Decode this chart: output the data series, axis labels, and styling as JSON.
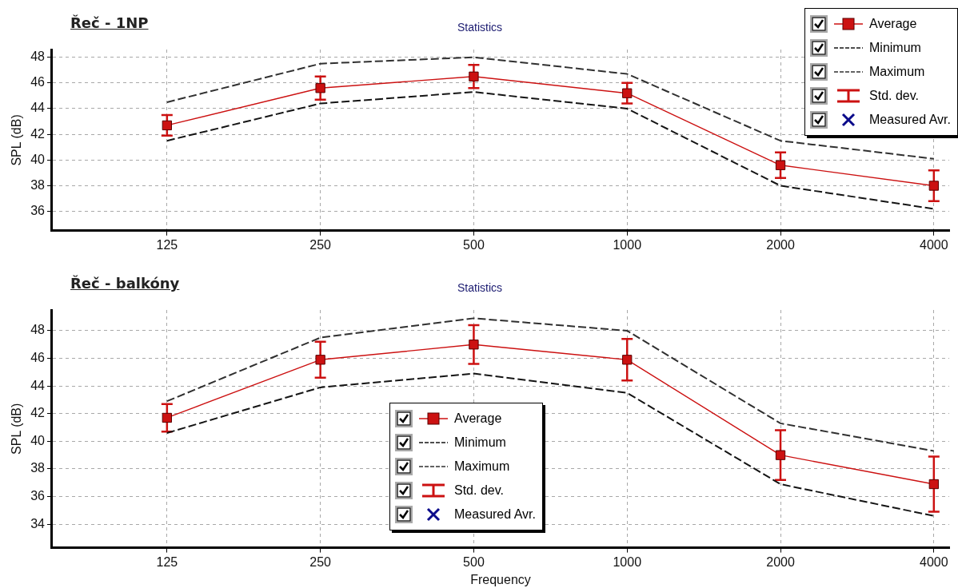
{
  "chart_data": [
    {
      "type": "line",
      "title": "Řeč - 1NP",
      "subtitle": "Statistics",
      "ylabel": "SPL (dB)",
      "categories": [
        "125",
        "250",
        "500",
        "1000",
        "2000",
        "4000"
      ],
      "ylim": [
        34.5,
        48.6
      ],
      "yticks": [
        36,
        38,
        40,
        42,
        44,
        46,
        48
      ],
      "grid": true,
      "legend": "top right",
      "annotations": [
        "Std. dev."
      ],
      "series": [
        {
          "name": "Average",
          "color": "#cc1111",
          "marker": "square",
          "line_style": "solid",
          "values": [
            42.7,
            45.6,
            46.5,
            45.2,
            39.6,
            38.0
          ],
          "errors": [
            0.8,
            0.9,
            0.9,
            0.8,
            1.0,
            1.2
          ]
        },
        {
          "name": "Minimum",
          "color": "#141414",
          "line_style": "dashed",
          "values": [
            41.5,
            44.4,
            45.3,
            44.0,
            38.0,
            36.2
          ]
        },
        {
          "name": "Maximum",
          "color": "#303030",
          "line_style": "dashed",
          "values": [
            44.5,
            47.5,
            48.0,
            46.7,
            41.5,
            40.1
          ]
        },
        {
          "name": "Measured Avr.",
          "color": "#0a0a8a",
          "marker": "cross",
          "values": [
            null,
            null,
            null,
            null,
            null,
            null
          ]
        }
      ]
    },
    {
      "type": "line",
      "title": "Řeč - balkóny",
      "subtitle": "Statistics",
      "xlabel": "Frequency",
      "ylabel": "SPL (dB)",
      "categories": [
        "125",
        "250",
        "500",
        "1000",
        "2000",
        "4000"
      ],
      "ylim": [
        32.3,
        49.5
      ],
      "yticks": [
        34,
        36,
        38,
        40,
        42,
        44,
        46,
        48
      ],
      "grid": true,
      "legend": "bottom",
      "annotations": [
        "Std. dev."
      ],
      "series": [
        {
          "name": "Average",
          "color": "#cc1111",
          "marker": "square",
          "line_style": "solid",
          "values": [
            41.7,
            45.9,
            47.0,
            45.9,
            39.0,
            36.9
          ],
          "errors": [
            1.0,
            1.3,
            1.4,
            1.5,
            1.8,
            2.0
          ]
        },
        {
          "name": "Minimum",
          "color": "#141414",
          "line_style": "dashed",
          "values": [
            40.6,
            43.9,
            44.9,
            43.5,
            36.9,
            34.6
          ]
        },
        {
          "name": "Maximum",
          "color": "#303030",
          "line_style": "dashed",
          "values": [
            42.9,
            47.5,
            48.9,
            48.0,
            41.3,
            39.3
          ]
        },
        {
          "name": "Measured Avr.",
          "color": "#0a0a8a",
          "marker": "cross",
          "values": [
            null,
            null,
            null,
            null,
            null,
            null
          ]
        }
      ]
    }
  ]
}
